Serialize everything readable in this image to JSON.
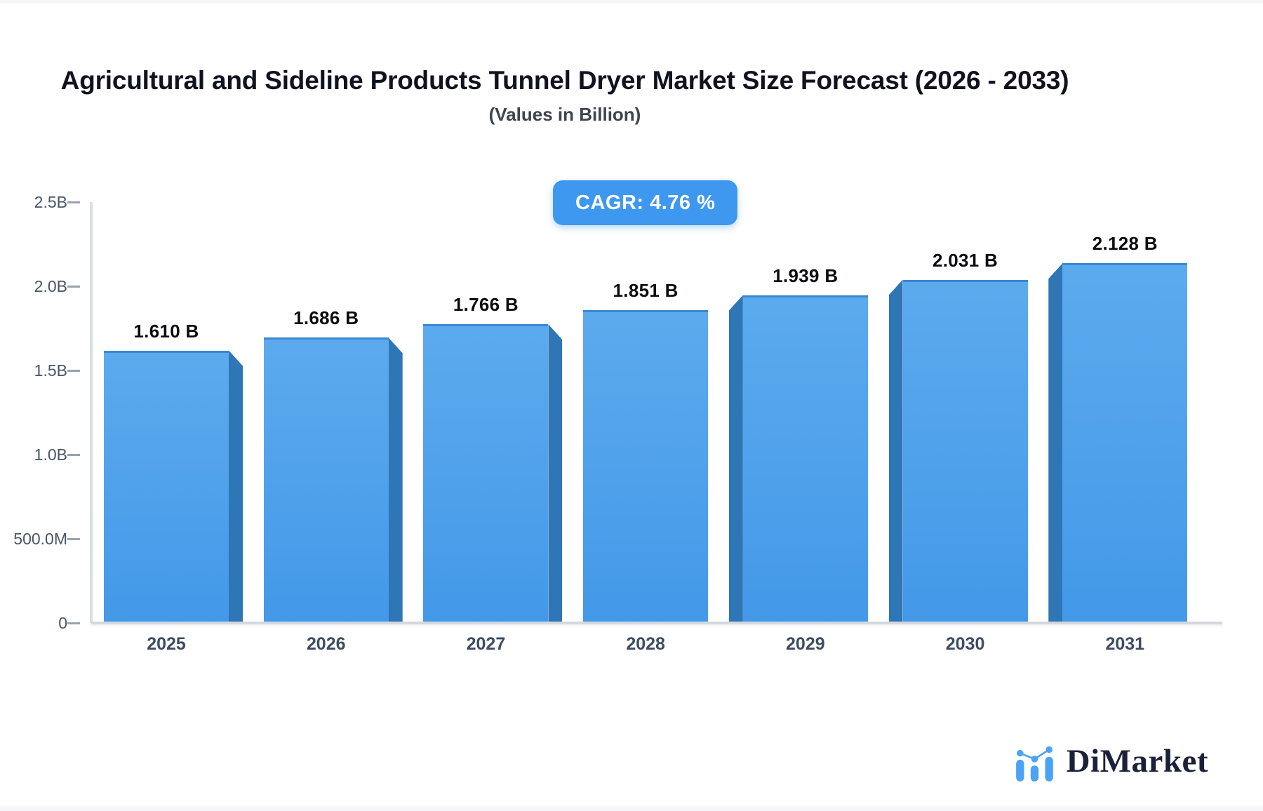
{
  "header": {
    "title": "Agricultural and Sideline Products Tunnel Dryer Market Size Forecast (2026 - 2033)",
    "subtitle": "(Values in Billion)"
  },
  "cagr_badge": "CAGR: 4.76 %",
  "chart_data": {
    "type": "bar",
    "title": "Agricultural and Sideline Products Tunnel Dryer Market Size Forecast (2026 - 2033)",
    "subtitle": "(Values in Billion)",
    "unit": "Billion",
    "cagr_percent": 4.76,
    "categories": [
      "2025",
      "2026",
      "2027",
      "2028",
      "2029",
      "2030",
      "2031"
    ],
    "values": [
      1.61,
      1.686,
      1.766,
      1.851,
      1.939,
      2.031,
      2.128
    ],
    "bar_labels": [
      "1.610 B",
      "1.686 B",
      "1.766 B",
      "1.851 B",
      "1.939 B",
      "2.031 B",
      "2.128 B"
    ],
    "ylim": [
      0,
      2.5
    ],
    "yticks": [
      {
        "value": 2.5,
        "label": "2.5B"
      },
      {
        "value": 2.0,
        "label": "2.0B"
      },
      {
        "value": 1.5,
        "label": "1.5B"
      },
      {
        "value": 1.0,
        "label": "1.0B"
      },
      {
        "value": 0.5,
        "label": "500.0M"
      },
      {
        "value": 0.0,
        "label": "0"
      }
    ],
    "grid": false,
    "legend": "none",
    "colors": {
      "bar_face_top": "#5caaee",
      "bar_face_bottom": "#4399e8",
      "bar_side_shadow": "#2e76b5",
      "bar_top_edge": "#3a88d2",
      "badge_background": "#3e98f0",
      "badge_text": "#ffffff",
      "axis_line": "#d4d8de",
      "tick_text": "#4a5668",
      "category_text": "#3d4c63",
      "value_text": "#0a0c10",
      "title_text": "#10131f",
      "subtitle_text": "#3e4450",
      "logo_navy": "#1b2138",
      "logo_blue": "#4aa3f7"
    }
  },
  "logo": {
    "name": "DiMarket"
  }
}
